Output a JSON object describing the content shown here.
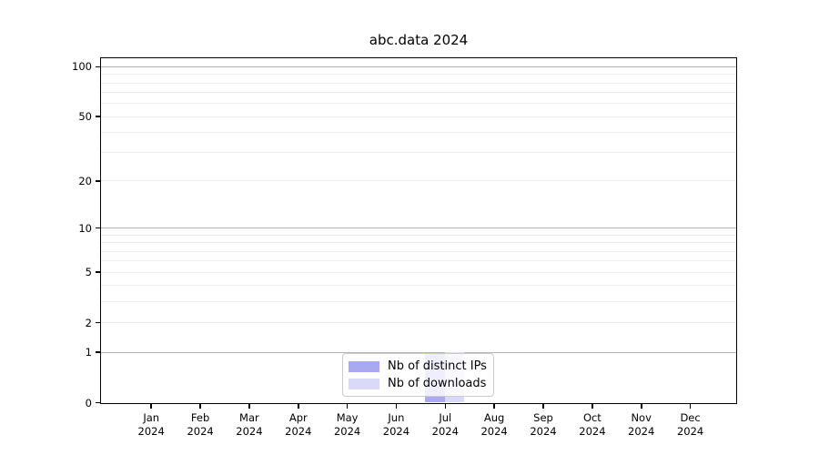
{
  "chart_data": {
    "type": "bar",
    "title": "abc.data 2024",
    "categories": [
      "Jan",
      "Feb",
      "Mar",
      "Apr",
      "May",
      "Jun",
      "Jul",
      "Aug",
      "Sep",
      "Oct",
      "Nov",
      "Dec"
    ],
    "category_year": "2024",
    "series": [
      {
        "name": "Nb of distinct IPs",
        "color": "#a9a9f2",
        "values": [
          0,
          0,
          0,
          0,
          0,
          0,
          1,
          0,
          0,
          0,
          0,
          0
        ]
      },
      {
        "name": "Nb of downloads",
        "color": "#d9d9f9",
        "values": [
          0,
          0,
          0,
          0,
          0,
          0,
          1,
          0,
          0,
          0,
          0,
          0
        ]
      }
    ],
    "yscale": "log1p",
    "ylim": [
      0,
      112
    ],
    "y_tick_values": [
      0,
      1,
      2,
      5,
      10,
      20,
      50,
      100
    ],
    "y_tick_labels": [
      "0",
      "1",
      "2",
      "5",
      "10",
      "20",
      "50",
      "100"
    ],
    "y_major_grid_values": [
      1,
      10,
      100
    ],
    "y_minor_grid_values": [
      2,
      3,
      4,
      5,
      6,
      7,
      8,
      9,
      20,
      30,
      40,
      50,
      60,
      70,
      80,
      90
    ],
    "grid": true,
    "legend_position": "lower center",
    "colors": {
      "major_grid": "#b5b5b5",
      "minor_grid": "#ebebeb",
      "spine": "#000000",
      "background": "#ffffff"
    }
  }
}
